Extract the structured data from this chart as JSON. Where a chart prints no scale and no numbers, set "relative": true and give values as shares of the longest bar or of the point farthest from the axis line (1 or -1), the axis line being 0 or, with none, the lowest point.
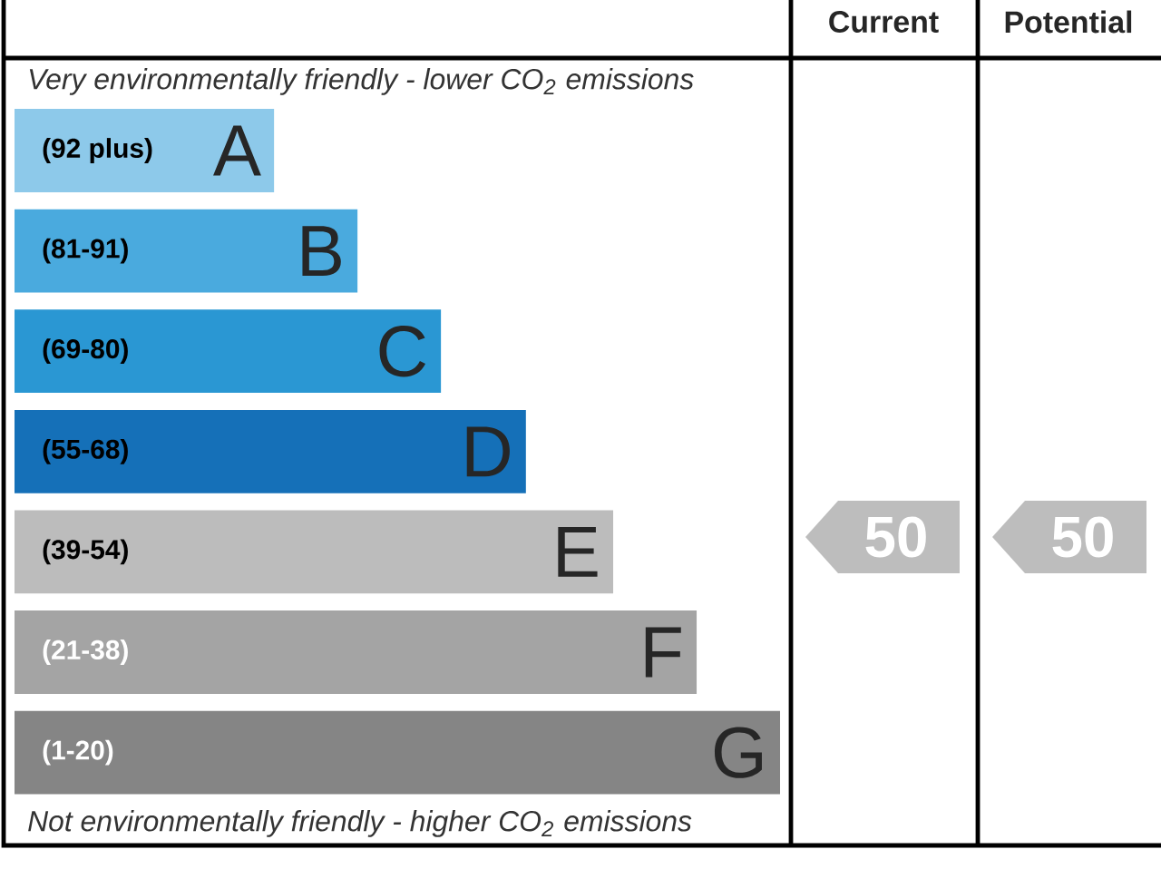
{
  "chart_data": {
    "type": "bar",
    "orientation": "horizontal",
    "relative": true,
    "title": "Very environmentally friendly - lower CO$_{2}$ emissions",
    "categories": [
      "(92 plus)",
      "(81-91)",
      "(69-80)",
      "(55-68)",
      "(39-54)",
      "(21-38)",
      "(1-20)"
    ],
    "values": [
      0.339,
      0.448,
      0.557,
      0.668,
      0.782,
      0.891,
      1
    ],
    "colors": [
      "#8dc9ea",
      "#4aaade",
      "#2a97d3",
      "#1570b8",
      "#bcbcbc",
      "#a4a4a4",
      "#858585"
    ],
    "annotations": [
      "Not environmentally friendly - higher CO$_{2}$ emissions",
      "Current",
      "Potential",
      "50",
      "50",
      {
        "text": "A",
        "y": "(92 plus)"
      },
      {
        "text": "B",
        "y": "(81-91)"
      },
      {
        "text": "C",
        "y": "(69-80)"
      },
      {
        "text": "D",
        "y": "(55-68)"
      },
      {
        "text": "E",
        "y": "(39-54)"
      },
      {
        "text": "F",
        "y": "(21-38)"
      },
      {
        "text": "G",
        "y": "(1-20)"
      }
    ]
  }
}
